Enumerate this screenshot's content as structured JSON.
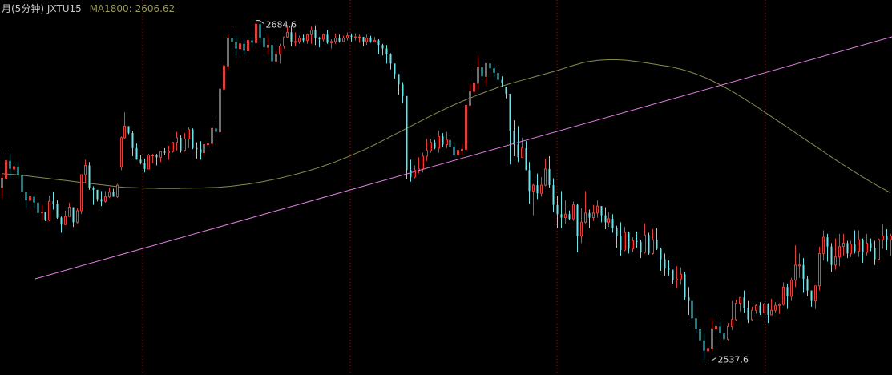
{
  "header": {
    "title": "月(5分钟) JXTU15",
    "ma_label": "MA1800:",
    "ma_value": "2606.62"
  },
  "colors": {
    "background": "#000000",
    "up": "#e0403c",
    "down": "#6fe3ea",
    "ma_line": "#8c8a4c",
    "trend_line": "#e27fe2",
    "grid": "#8b1a1a"
  },
  "chart_data": {
    "type": "candlestick",
    "ylim": [
      2535,
      2690
    ],
    "high_marker": {
      "value": 2684.6,
      "label": "2684.6"
    },
    "low_marker": {
      "value": 2537.6,
      "label": "2537.6"
    },
    "ma_value": 2606.62,
    "candles": [
      [
        2612.5,
        2616.5,
        2608,
        2618
      ],
      [
        2616.5,
        2624,
        2616,
        2627.5
      ],
      [
        2624,
        2620.5,
        2617,
        2627.5
      ],
      [
        2620.5,
        2621.5,
        2619,
        2623.5
      ],
      [
        2621.5,
        2618,
        2617,
        2623.5
      ],
      [
        2618,
        2610.5,
        2609,
        2619
      ],
      [
        2610.5,
        2607,
        2604,
        2610.5
      ],
      [
        2607,
        2608.5,
        2605,
        2608.5
      ],
      [
        2608.5,
        2606,
        2604,
        2609
      ],
      [
        2606,
        2601.5,
        2600.5,
        2607
      ],
      [
        2601.5,
        2602,
        2598.5,
        2605
      ],
      [
        2602,
        2598.5,
        2598,
        2602
      ],
      [
        2598.5,
        2606.5,
        2598,
        2609
      ],
      [
        2606.5,
        2605.5,
        2603,
        2610.5
      ],
      [
        2605.5,
        2599.5,
        2599,
        2607
      ],
      [
        2599.5,
        2596.5,
        2593,
        2600
      ],
      [
        2596.5,
        2600,
        2596.5,
        2602.5
      ],
      [
        2600,
        2604,
        2600,
        2606
      ],
      [
        2604,
        2597.5,
        2595.5,
        2604
      ],
      [
        2597.5,
        2602.5,
        2597,
        2603.5
      ],
      [
        2602.5,
        2618,
        2601,
        2618
      ],
      [
        2618,
        2622,
        2614.5,
        2624.5
      ],
      [
        2622,
        2612.5,
        2611.5,
        2623.5
      ],
      [
        2612.5,
        2611.5,
        2605,
        2613
      ],
      [
        2611.5,
        2607.5,
        2606.5,
        2611.5
      ],
      [
        2607.5,
        2606.5,
        2604.5,
        2611
      ],
      [
        2606.5,
        2608.5,
        2606,
        2611
      ],
      [
        2608.5,
        2610.5,
        2608,
        2612.5
      ],
      [
        2610.5,
        2608.5,
        2608.5,
        2612
      ],
      [
        2608.5,
        2613.5,
        2608,
        2614
      ],
      [
        2621.5,
        2634,
        2620,
        2634.5
      ],
      [
        2634,
        2639,
        2633.5,
        2645
      ],
      [
        2639,
        2636,
        2635.5,
        2639
      ],
      [
        2636,
        2629.5,
        2626,
        2637
      ],
      [
        2629.5,
        2624.5,
        2624.5,
        2631.5
      ],
      [
        2624.5,
        2623,
        2622.5,
        2626.5
      ],
      [
        2623,
        2620.5,
        2619,
        2625
      ],
      [
        2620.5,
        2626.5,
        2620.5,
        2627
      ],
      [
        2626.5,
        2626.5,
        2623,
        2627
      ],
      [
        2626.5,
        2625.5,
        2622,
        2627
      ],
      [
        2625.5,
        2628,
        2623.5,
        2628
      ],
      [
        2628,
        2627.5,
        2626.5,
        2629.5
      ],
      [
        2627.5,
        2628,
        2624.5,
        2630.5
      ],
      [
        2628,
        2632,
        2627.5,
        2632
      ],
      [
        2632,
        2634,
        2628.5,
        2636.5
      ],
      [
        2634,
        2628.5,
        2627.5,
        2635
      ],
      [
        2628.5,
        2633.5,
        2628,
        2636
      ],
      [
        2633.5,
        2637.5,
        2629.5,
        2638.5
      ],
      [
        2637.5,
        2629.5,
        2629,
        2638
      ],
      [
        2629.5,
        2629,
        2625,
        2632
      ],
      [
        2629,
        2627.5,
        2624.5,
        2632.5
      ],
      [
        2627.5,
        2631,
        2626.5,
        2631
      ],
      [
        2631,
        2631.5,
        2629.5,
        2633.5
      ],
      [
        2631.5,
        2638,
        2631,
        2638.5
      ],
      [
        2638,
        2636.5,
        2635,
        2641
      ],
      [
        2636.5,
        2655,
        2636.5,
        2655
      ],
      [
        2655,
        2665,
        2654.5,
        2667
      ],
      [
        2665,
        2677,
        2663.5,
        2678.5
      ],
      [
        2677,
        2675.5,
        2672,
        2680
      ],
      [
        2675.5,
        2672.5,
        2669.5,
        2678
      ],
      [
        2672.5,
        2674.5,
        2670,
        2676
      ],
      [
        2674.5,
        2671.5,
        2670,
        2676.5
      ],
      [
        2671.5,
        2676,
        2666,
        2677.5
      ],
      [
        2676,
        2675,
        2673.5,
        2677.5
      ],
      [
        2675,
        2683,
        2674.5,
        2684.6
      ],
      [
        2683,
        2677,
        2675.5,
        2683.5
      ],
      [
        2677,
        2673,
        2667,
        2677.5
      ],
      [
        2673,
        2674,
        2670,
        2678
      ],
      [
        2674,
        2667,
        2663,
        2674.5
      ],
      [
        2667,
        2670,
        2666.5,
        2671.5
      ],
      [
        2670,
        2673.5,
        2666,
        2674.5
      ],
      [
        2673.5,
        2677.5,
        2672.5,
        2677.5
      ],
      [
        2677.5,
        2679.5,
        2677,
        2682
      ],
      [
        2679.5,
        2675.5,
        2673.5,
        2682.5
      ],
      [
        2675.5,
        2675.5,
        2673.5,
        2679.5
      ],
      [
        2675.5,
        2677,
        2674.5,
        2678
      ],
      [
        2677,
        2676,
        2675,
        2678.5
      ],
      [
        2676,
        2678.5,
        2674.5,
        2679
      ],
      [
        2678.5,
        2680.5,
        2674.5,
        2682
      ],
      [
        2680.5,
        2677,
        2674,
        2682.5
      ],
      [
        2677,
        2676.5,
        2673,
        2677.5
      ],
      [
        2676.5,
        2678.5,
        2675.5,
        2679
      ],
      [
        2678.5,
        2675,
        2674.5,
        2680.5
      ],
      [
        2675,
        2675.5,
        2672.5,
        2676.5
      ],
      [
        2675.5,
        2677,
        2674.5,
        2679
      ],
      [
        2677,
        2675.5,
        2675,
        2678.5
      ],
      [
        2675.5,
        2677,
        2675.5,
        2678
      ],
      [
        2677,
        2678,
        2676,
        2679.5
      ],
      [
        2678,
        2677.5,
        2675.5,
        2679
      ],
      [
        2677.5,
        2677.5,
        2676,
        2679
      ],
      [
        2677.5,
        2677.5,
        2675,
        2678.5
      ],
      [
        2677.5,
        2675.5,
        2673.5,
        2677.5
      ],
      [
        2675.5,
        2677,
        2674,
        2678.5
      ],
      [
        2677,
        2675.5,
        2675,
        2678
      ],
      [
        2675.5,
        2676,
        2675.5,
        2677.5
      ],
      [
        2676,
        2674,
        2670,
        2676.5
      ],
      [
        2674,
        2672.5,
        2669.5,
        2674.5
      ],
      [
        2672.5,
        2670,
        2666,
        2674
      ],
      [
        2670,
        2666,
        2663.5,
        2670.5
      ],
      [
        2666,
        2661.5,
        2659.5,
        2666
      ],
      [
        2661.5,
        2657,
        2652.5,
        2661.5
      ],
      [
        2657,
        2652,
        2649,
        2658
      ],
      [
        2652,
        2620,
        2616,
        2652
      ],
      [
        2620,
        2617,
        2615,
        2624.5
      ],
      [
        2617,
        2620,
        2616.5,
        2622
      ],
      [
        2620,
        2620.5,
        2618.5,
        2625.5
      ],
      [
        2620.5,
        2626,
        2619,
        2627.5
      ],
      [
        2626,
        2628.5,
        2624,
        2633.5
      ],
      [
        2628.5,
        2632,
        2627.5,
        2633.5
      ],
      [
        2632,
        2629.5,
        2629,
        2633
      ],
      [
        2629.5,
        2634.5,
        2627.5,
        2637
      ],
      [
        2634.5,
        2631,
        2630,
        2636
      ],
      [
        2631,
        2633,
        2629.5,
        2636.5
      ],
      [
        2633,
        2630,
        2630,
        2634
      ],
      [
        2630,
        2626.5,
        2625.5,
        2631.5
      ],
      [
        2626.5,
        2628.5,
        2626.5,
        2628.5
      ],
      [
        2628.5,
        2629,
        2626.5,
        2631.5
      ],
      [
        2629,
        2648,
        2629,
        2648
      ],
      [
        2648,
        2654,
        2647.5,
        2657
      ],
      [
        2654,
        2657.5,
        2649.5,
        2664
      ],
      [
        2657.5,
        2664.5,
        2655,
        2669.5
      ],
      [
        2664.5,
        2660.5,
        2660,
        2668.5
      ],
      [
        2660.5,
        2666,
        2656.5,
        2666
      ],
      [
        2666,
        2664,
        2661,
        2666
      ],
      [
        2664,
        2662,
        2660.5,
        2665
      ],
      [
        2662,
        2659,
        2656,
        2664.5
      ],
      [
        2659,
        2657.5,
        2656,
        2660.5
      ],
      [
        2656,
        2653,
        2651,
        2656
      ],
      [
        2653,
        2637,
        2622.5,
        2653
      ],
      [
        2637,
        2631,
        2626,
        2641.5
      ],
      [
        2631,
        2625.5,
        2623.5,
        2639
      ],
      [
        2625.5,
        2629.5,
        2625.5,
        2634
      ],
      [
        2629.5,
        2620,
        2620,
        2632.5
      ],
      [
        2620,
        2611,
        2605.5,
        2623.5
      ],
      [
        2611,
        2613.5,
        2600.5,
        2614
      ],
      [
        2613.5,
        2610,
        2607.5,
        2618.5
      ],
      [
        2610,
        2613.5,
        2608.5,
        2617
      ],
      [
        2613.5,
        2620.5,
        2613,
        2625
      ],
      [
        2620.5,
        2613.5,
        2612.5,
        2626
      ],
      [
        2613.5,
        2605,
        2602,
        2616.5
      ],
      [
        2605,
        2601,
        2595,
        2609
      ],
      [
        2601,
        2599.5,
        2595,
        2611
      ],
      [
        2599.5,
        2601,
        2597,
        2607
      ],
      [
        2601,
        2599,
        2598.5,
        2602.5
      ],
      [
        2599,
        2605,
        2598,
        2606.5
      ],
      [
        2605,
        2591.5,
        2584.5,
        2605.5
      ],
      [
        2591.5,
        2597.5,
        2588.5,
        2603.5
      ],
      [
        2597.5,
        2601.5,
        2597,
        2611
      ],
      [
        2601.5,
        2599.5,
        2595,
        2603
      ],
      [
        2599.5,
        2601.5,
        2598,
        2605
      ],
      [
        2601.5,
        2604.5,
        2599.5,
        2607
      ],
      [
        2604.5,
        2600.5,
        2597.5,
        2604.5
      ],
      [
        2600.5,
        2597.5,
        2594.5,
        2604
      ],
      [
        2597.5,
        2599,
        2595.5,
        2602
      ],
      [
        2599,
        2595,
        2593,
        2601
      ],
      [
        2595,
        2591.5,
        2586.5,
        2596
      ],
      [
        2591.5,
        2585.5,
        2583,
        2597.5
      ],
      [
        2585.5,
        2593,
        2585,
        2595.5
      ],
      [
        2593,
        2586,
        2584,
        2593.5
      ],
      [
        2586,
        2589.5,
        2584.5,
        2591
      ],
      [
        2589.5,
        2589,
        2586.5,
        2593.5
      ],
      [
        2589,
        2584.5,
        2582,
        2590
      ],
      [
        2584.5,
        2592,
        2584,
        2597
      ],
      [
        2592,
        2584,
        2583.5,
        2593
      ],
      [
        2584,
        2590,
        2583.5,
        2594.5
      ],
      [
        2590,
        2586,
        2585.5,
        2595
      ],
      [
        2586,
        2581.5,
        2576.5,
        2586.5
      ],
      [
        2581.5,
        2577.5,
        2574.5,
        2584
      ],
      [
        2577.5,
        2577,
        2574.5,
        2581
      ],
      [
        2577,
        2572.5,
        2571,
        2577
      ],
      [
        2572.5,
        2573,
        2569,
        2578.5
      ],
      [
        2573,
        2575,
        2570.5,
        2578
      ],
      [
        2575,
        2565,
        2564,
        2576
      ],
      [
        2565,
        2563.5,
        2557.5,
        2569.5
      ],
      [
        2563.5,
        2556,
        2553,
        2564
      ],
      [
        2556,
        2551.5,
        2550,
        2556
      ],
      [
        2551.5,
        2546.5,
        2542.5,
        2552
      ],
      [
        2546.5,
        2542,
        2538,
        2549.5
      ],
      [
        2542,
        2543,
        2537.6,
        2549.5
      ],
      [
        2543,
        2551.5,
        2542,
        2556
      ],
      [
        2551.5,
        2552.5,
        2547.5,
        2554.5
      ],
      [
        2552.5,
        2549.5,
        2549,
        2554.5
      ],
      [
        2549.5,
        2547,
        2546.5,
        2556
      ],
      [
        2547,
        2552.5,
        2546.5,
        2554
      ],
      [
        2552.5,
        2555.5,
        2551,
        2563.5
      ],
      [
        2555.5,
        2562.5,
        2555,
        2564
      ],
      [
        2562.5,
        2565,
        2559,
        2565
      ],
      [
        2565,
        2560.5,
        2558.5,
        2568
      ],
      [
        2560.5,
        2555.5,
        2554,
        2563.5
      ],
      [
        2555.5,
        2559.5,
        2555,
        2561
      ],
      [
        2559.5,
        2561.5,
        2558,
        2562
      ],
      [
        2561.5,
        2558.5,
        2557.5,
        2563
      ],
      [
        2558.5,
        2562,
        2558.5,
        2562.5
      ],
      [
        2562,
        2557.5,
        2554,
        2562.5
      ],
      [
        2557.5,
        2559.5,
        2557.5,
        2564.5
      ],
      [
        2559.5,
        2561.5,
        2558.5,
        2563
      ],
      [
        2561.5,
        2562,
        2558,
        2562.5
      ],
      [
        2562,
        2569.5,
        2561.5,
        2571.5
      ],
      [
        2569.5,
        2565.5,
        2560,
        2571
      ],
      [
        2565.5,
        2572.5,
        2563.5,
        2573.5
      ],
      [
        2572.5,
        2579,
        2569.5,
        2587.5
      ],
      [
        2579,
        2579,
        2573.5,
        2584
      ],
      [
        2579,
        2573,
        2567,
        2582
      ],
      [
        2573,
        2568,
        2565.5,
        2574.5
      ],
      [
        2568,
        2563.5,
        2561,
        2568
      ],
      [
        2563.5,
        2570,
        2560,
        2570
      ],
      [
        2570,
        2584,
        2568,
        2587
      ],
      [
        2584,
        2591,
        2581,
        2594
      ],
      [
        2591,
        2587,
        2580.5,
        2592.5
      ],
      [
        2587,
        2579,
        2576,
        2588.5
      ],
      [
        2579,
        2582.5,
        2577,
        2590.5
      ],
      [
        2582.5,
        2587,
        2578.5,
        2592.5
      ],
      [
        2587,
        2588.5,
        2583,
        2592.5
      ],
      [
        2588.5,
        2584,
        2582,
        2589.5
      ],
      [
        2584,
        2588,
        2582.5,
        2589.5
      ],
      [
        2588,
        2585,
        2584,
        2594
      ],
      [
        2585,
        2590,
        2582.5,
        2594
      ],
      [
        2590,
        2584.5,
        2580,
        2590.5
      ],
      [
        2584.5,
        2588.5,
        2583,
        2592.5
      ],
      [
        2588.5,
        2586.5,
        2585,
        2590.5
      ],
      [
        2586.5,
        2581.5,
        2579,
        2589.5
      ],
      [
        2581.5,
        2590,
        2581,
        2590.5
      ],
      [
        2590,
        2591.5,
        2586,
        2596.5
      ],
      [
        2591.5,
        2590,
        2585.5,
        2594.5
      ],
      [
        2590,
        2591.5,
        2583,
        2592.5
      ]
    ],
    "ma_series": [
      2618.5,
      2618.3,
      2618.1,
      2617.9,
      2617.6,
      2617.3,
      2617,
      2616.7,
      2616.4,
      2616.1,
      2615.8,
      2615.5,
      2615.2,
      2614.9,
      2614.6,
      2614.3,
      2614,
      2613.7,
      2613.4,
      2613.1,
      2612.8,
      2612.6,
      2612.5,
      2612.4,
      2612.3,
      2612.2,
      2612.2,
      2612.1,
      2612.1,
      2612.1,
      2612.1,
      2612.2,
      2612.2,
      2612.3,
      2612.3,
      2612.4,
      2612.5,
      2612.6,
      2612.8,
      2613,
      2613.3,
      2613.6,
      2613.9,
      2614.3,
      2614.7,
      2615.2,
      2615.7,
      2616.2,
      2616.8,
      2617.4,
      2618,
      2618.7,
      2619.4,
      2620.1,
      2620.9,
      2621.7,
      2622.6,
      2623.5,
      2624.5,
      2625.5,
      2626.6,
      2627.7,
      2628.8,
      2630,
      2631.2,
      2632.5,
      2633.8,
      2635.1,
      2636.4,
      2637.7,
      2639,
      2640.3,
      2641.6,
      2642.9,
      2644.2,
      2645.4,
      2646.6,
      2647.8,
      2648.9,
      2650,
      2651,
      2652,
      2653,
      2654,
      2654.9,
      2655.8,
      2656.6,
      2657.4,
      2658.1,
      2658.8,
      2659.5,
      2660.2,
      2660.9,
      2661.6,
      2662.3,
      2663,
      2663.8,
      2664.6,
      2665.4,
      2666.1,
      2666.7,
      2667.1,
      2667.4,
      2667.6,
      2667.7,
      2667.7,
      2667.6,
      2667.4,
      2667.1,
      2666.8,
      2666.4,
      2666,
      2665.6,
      2665.2,
      2664.8,
      2664.3,
      2663.7,
      2663,
      2662.2,
      2661.3,
      2660.3,
      2659.2,
      2658,
      2656.7,
      2655.3,
      2653.9,
      2652.4,
      2650.8,
      2649.2,
      2647.6,
      2645.9,
      2644.2,
      2642.5,
      2640.8,
      2639.1,
      2637.4,
      2635.7,
      2634,
      2632.3,
      2630.6,
      2628.9,
      2627.2,
      2625.5,
      2623.8,
      2622.2,
      2620.6,
      2619,
      2617.4,
      2615.9,
      2614.4,
      2613,
      2611.6,
      2610.3
    ]
  }
}
